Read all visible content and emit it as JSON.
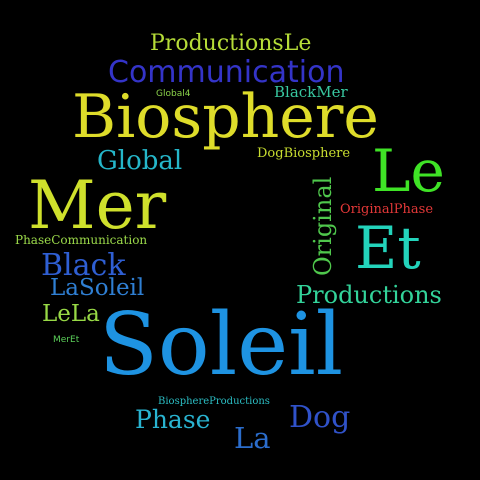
{
  "cloud": {
    "background": "#000000",
    "words": [
      {
        "key": "productionsle",
        "text": "ProductionsLe",
        "color": "#b6dd38"
      },
      {
        "key": "communication",
        "text": "Communication",
        "color": "#3434c8"
      },
      {
        "key": "global4",
        "text": "Global4",
        "color": "#8ad24a"
      },
      {
        "key": "blackmer",
        "text": "BlackMer",
        "color": "#38c7a0"
      },
      {
        "key": "biosphere",
        "text": "Biosphere",
        "color": "#dedc2a"
      },
      {
        "key": "global",
        "text": "Global",
        "color": "#25b6c9"
      },
      {
        "key": "dogbiosphere",
        "text": "DogBiosphere",
        "color": "#c8dd30"
      },
      {
        "key": "le",
        "text": "Le",
        "color": "#3fe326"
      },
      {
        "key": "mer",
        "text": "Mer",
        "color": "#cfe02c"
      },
      {
        "key": "originalphase",
        "text": "OriginalPhase",
        "color": "#e33838"
      },
      {
        "key": "original",
        "text": "Original",
        "color": "#4fc74c"
      },
      {
        "key": "phasecommunication",
        "text": "PhaseCommunication",
        "color": "#9bd94a"
      },
      {
        "key": "et",
        "text": "Et",
        "color": "#23d3bb"
      },
      {
        "key": "black",
        "text": "Black",
        "color": "#2f5fd3"
      },
      {
        "key": "lasoleil",
        "text": "LaSoleil",
        "color": "#2f7fd3"
      },
      {
        "key": "productions",
        "text": "Productions",
        "color": "#33d39a"
      },
      {
        "key": "lela",
        "text": "LeLa",
        "color": "#98d946"
      },
      {
        "key": "meret",
        "text": "MerEt",
        "color": "#5bcf59"
      },
      {
        "key": "soleil",
        "text": "Soleil",
        "color": "#1e93e2"
      },
      {
        "key": "biosphereproductions",
        "text": "BiosphereProductions",
        "color": "#2bbec4"
      },
      {
        "key": "phase",
        "text": "Phase",
        "color": "#29b3d0"
      },
      {
        "key": "dog",
        "text": "Dog",
        "color": "#3052c9"
      },
      {
        "key": "la",
        "text": "La",
        "color": "#2b6dcc"
      }
    ]
  }
}
